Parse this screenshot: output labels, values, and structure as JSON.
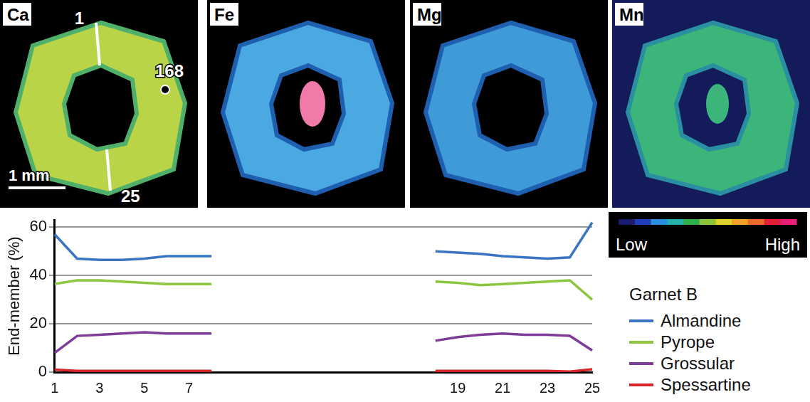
{
  "maps": {
    "panels": [
      {
        "label": "Ca"
      },
      {
        "label": "Fe"
      },
      {
        "label": "Mg"
      },
      {
        "label": "Mn"
      }
    ],
    "annotations": {
      "profile_start": "1",
      "profile_end": "25",
      "spot": "168",
      "scale_bar": "1 mm"
    },
    "colorbar": {
      "low": "Low",
      "high": "High"
    }
  },
  "chart_data": {
    "type": "line",
    "y_label": "End-member (%)",
    "legend_title": "Garnet B",
    "categories": [
      "1",
      null,
      "3",
      null,
      "5",
      null,
      "7",
      null,
      null,
      null,
      null,
      null,
      null,
      null,
      null,
      null,
      null,
      null,
      "19",
      null,
      "21",
      null,
      "23",
      null,
      "25"
    ],
    "series": [
      {
        "name": "Almandine",
        "color": "#3a75c4",
        "values": [
          57,
          47,
          46.5,
          46.5,
          47,
          48,
          48,
          48,
          null,
          null,
          null,
          null,
          null,
          null,
          null,
          null,
          null,
          50,
          49.5,
          49,
          48,
          47.5,
          47,
          47.5,
          62
        ]
      },
      {
        "name": "Pyrope",
        "color": "#8cc63f",
        "values": [
          36.5,
          38,
          38,
          37.5,
          37,
          36.5,
          36.5,
          36.5,
          null,
          null,
          null,
          null,
          null,
          null,
          null,
          null,
          null,
          37.5,
          37,
          36,
          36.5,
          37,
          37.5,
          38,
          30
        ]
      },
      {
        "name": "Grossular",
        "color": "#7d3c98",
        "values": [
          8,
          15,
          15.5,
          16,
          16.5,
          16,
          16,
          16,
          null,
          null,
          null,
          null,
          null,
          null,
          null,
          null,
          null,
          13,
          14.5,
          15.5,
          16,
          15.5,
          15.5,
          15,
          9
        ]
      },
      {
        "name": "Spessartine",
        "color": "#d7262b",
        "values": [
          1,
          0.5,
          0.5,
          0.5,
          0.5,
          0.5,
          0.5,
          0.5,
          null,
          null,
          null,
          null,
          null,
          null,
          null,
          null,
          null,
          0.5,
          0.5,
          0.5,
          0.5,
          0.5,
          0.5,
          0.2,
          1.2
        ]
      }
    ],
    "ylim": [
      0,
      63
    ],
    "yticks": [
      0,
      20,
      40,
      60
    ],
    "grid": "y",
    "legend": "right",
    "marker": "none",
    "line_style": "solid"
  }
}
